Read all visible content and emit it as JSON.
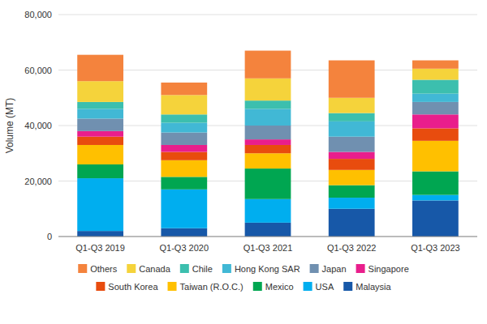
{
  "chart_data": {
    "type": "bar",
    "stacked": true,
    "y_label": "Volume (MT)",
    "categories": [
      "Q1-Q3 2019",
      "Q1-Q3 2020",
      "Q1-Q3 2021",
      "Q1-Q3 2022",
      "Q1-Q3 2023"
    ],
    "series": [
      {
        "name": "Malaysia",
        "color": "#1758A8",
        "values": [
          2000,
          3000,
          5000,
          10000,
          13000
        ]
      },
      {
        "name": "USA",
        "color": "#00AEEF",
        "values": [
          19000,
          14000,
          8500,
          4000,
          2000
        ]
      },
      {
        "name": "Mexico",
        "color": "#00A651",
        "values": [
          5000,
          4500,
          11000,
          4500,
          8500
        ]
      },
      {
        "name": "Taiwan (R.O.C.)",
        "color": "#FFC000",
        "values": [
          7000,
          6000,
          5500,
          5500,
          11000
        ]
      },
      {
        "name": "South Korea",
        "color": "#E84C0E",
        "values": [
          3000,
          3000,
          3000,
          4000,
          4500
        ]
      },
      {
        "name": "Singapore",
        "color": "#E91E8C",
        "values": [
          2000,
          2500,
          2000,
          2500,
          5000
        ]
      },
      {
        "name": "Japan",
        "color": "#7090B0",
        "values": [
          4500,
          4500,
          5000,
          5500,
          4500
        ]
      },
      {
        "name": "Hong Kong SAR",
        "color": "#41B8D5",
        "values": [
          3500,
          3500,
          6000,
          5500,
          3000
        ]
      },
      {
        "name": "Chile",
        "color": "#3CBFAE",
        "values": [
          2500,
          3000,
          3000,
          3000,
          5000
        ]
      },
      {
        "name": "Canada",
        "color": "#F5D33B",
        "values": [
          7500,
          7000,
          8000,
          5500,
          4000
        ]
      },
      {
        "name": "Others",
        "color": "#F4833D",
        "values": [
          9500,
          4500,
          10000,
          13500,
          3000
        ]
      }
    ],
    "ylim": [
      0,
      80000
    ],
    "yticks": [
      0,
      {
        "value": 20000,
        "label": "20,000"
      },
      {
        "value": 40000,
        "label": "40,000"
      },
      {
        "value": 60000,
        "label": "60,000"
      },
      {
        "value": 80000,
        "label": "80,000"
      }
    ],
    "grid": true,
    "legend": "bottom"
  }
}
